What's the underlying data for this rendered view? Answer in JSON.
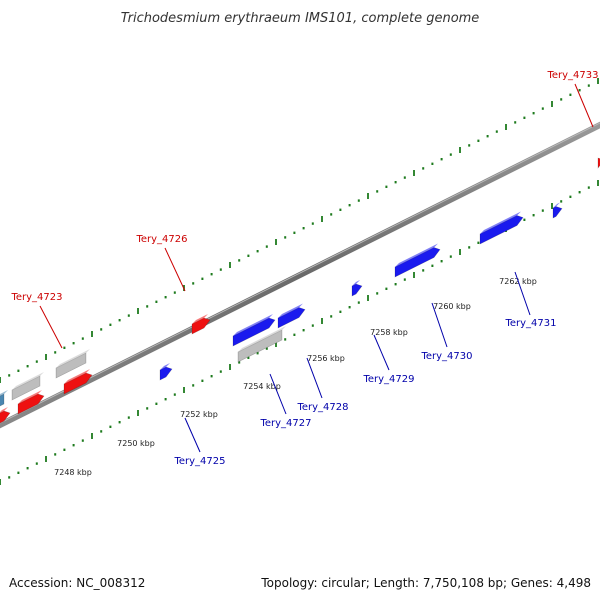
{
  "title": "Trichodesmium erythraeum IMS101, complete genome",
  "footer": {
    "accession": "Accession: NC_008312",
    "topology": "Topology: circular; Length: 7,750,108 bp; Genes: 4,498"
  },
  "colors": {
    "forward": "#ee1111",
    "reverse": "#1a1aee",
    "other": "#bdbdbd",
    "teal": "#4a86b0",
    "tick": "#1d7a1d",
    "forward_label": "#cc0000",
    "reverse_label": "#0000aa"
  },
  "kbp_labels": [
    "7248 kbp",
    "7250 kbp",
    "7252 kbp",
    "7254 kbp",
    "7256 kbp",
    "7258 kbp",
    "7260 kbp",
    "7262 kbp"
  ],
  "forward_gene_labels": [
    "Tery_4723",
    "Tery_4726",
    "Tery_4733"
  ],
  "reverse_gene_labels": [
    "Tery_4725",
    "Tery_4727",
    "Tery_4728",
    "Tery_4729",
    "Tery_4730",
    "Tery_4731"
  ]
}
